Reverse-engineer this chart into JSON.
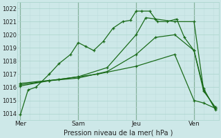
{
  "background_color": "#cde8e8",
  "grid_major_color": "#aad4cc",
  "grid_minor_color": "#bedddd",
  "line_color": "#1a6b1a",
  "xlabel": "Pression niveau de la mer( hPa )",
  "ylim": [
    1013.5,
    1022.5
  ],
  "xlim": [
    -0.15,
    10.3
  ],
  "yticks": [
    1014,
    1015,
    1016,
    1017,
    1018,
    1019,
    1020,
    1021,
    1022
  ],
  "day_labels": [
    "Mer",
    "Sam",
    "Jeu",
    "Ven"
  ],
  "day_positions": [
    0.0,
    3.0,
    6.0,
    9.0
  ],
  "vline_color": "#336633",
  "series": [
    {
      "x": [
        0.0,
        0.4,
        0.8,
        1.5,
        2.0,
        2.6,
        3.0,
        3.4,
        3.8,
        4.3,
        4.8,
        5.3,
        5.7,
        6.0,
        6.3,
        6.7,
        7.1,
        7.6,
        8.1,
        8.5,
        9.0,
        9.5,
        10.1
      ],
      "y": [
        1013.9,
        1015.8,
        1016.0,
        1017.0,
        1017.8,
        1018.5,
        1019.4,
        1019.1,
        1018.8,
        1019.5,
        1020.5,
        1021.0,
        1021.1,
        1021.8,
        1021.8,
        1021.8,
        1021.0,
        1021.0,
        1021.2,
        1019.8,
        1018.8,
        1015.9,
        1014.3
      ]
    },
    {
      "x": [
        0.0,
        1.5,
        3.0,
        4.5,
        6.0,
        6.5,
        7.0,
        8.0,
        9.0,
        9.5,
        10.1
      ],
      "y": [
        1016.1,
        1016.5,
        1016.8,
        1017.5,
        1020.0,
        1021.3,
        1021.2,
        1021.0,
        1021.0,
        1015.8,
        1014.4
      ]
    },
    {
      "x": [
        0.0,
        1.5,
        3.0,
        4.5,
        6.0,
        7.0,
        8.0,
        9.0,
        9.5,
        10.1
      ],
      "y": [
        1016.2,
        1016.5,
        1016.7,
        1017.2,
        1018.5,
        1019.8,
        1020.0,
        1018.8,
        1015.7,
        1014.5
      ]
    },
    {
      "x": [
        0.0,
        2.0,
        4.0,
        6.0,
        8.0,
        9.0,
        9.5,
        10.1
      ],
      "y": [
        1016.3,
        1016.6,
        1017.0,
        1017.6,
        1018.5,
        1015.0,
        1014.8,
        1014.4
      ]
    }
  ]
}
